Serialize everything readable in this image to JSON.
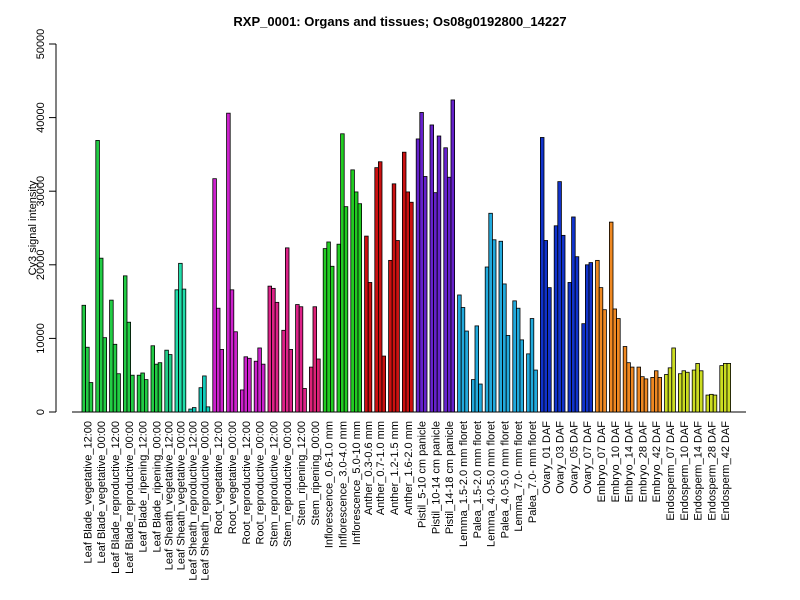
{
  "chart_data": {
    "type": "bar",
    "title": "RXP_0001: Organs and tissues; Os08g0192800_14227",
    "xlabel": "",
    "ylabel": "Cy3 signal intensity",
    "ylim": [
      0,
      50000
    ],
    "yticks": [
      0,
      10000,
      20000,
      30000,
      40000,
      50000
    ],
    "grid": false,
    "legend": "none",
    "groups": [
      {
        "color": "#22cc44",
        "values": [
          14500,
          8800,
          4000
        ]
      },
      {
        "color": "#22cc44",
        "values": [
          36900,
          20900,
          10100
        ]
      },
      {
        "color": "#22cc44",
        "values": [
          15200,
          9200,
          5200
        ]
      },
      {
        "color": "#22cc44",
        "values": [
          18500,
          12200,
          5000
        ]
      },
      {
        "color": "#22cc44",
        "values": [
          5000,
          5300,
          4400
        ]
      },
      {
        "color": "#22cc44",
        "values": [
          9000,
          6500,
          6700
        ]
      },
      {
        "color": "#22cc88",
        "values": [
          8400,
          7800
        ]
      },
      {
        "color": "#22ddaa",
        "values": [
          16600,
          20200,
          16700
        ]
      },
      {
        "color": "#11ccbb",
        "values": [
          400,
          600
        ]
      },
      {
        "color": "#11ccbb",
        "values": [
          3300,
          4900,
          700
        ]
      },
      {
        "color": "#cc22cc",
        "values": [
          31700,
          14100,
          8500
        ]
      },
      {
        "color": "#cc22cc",
        "values": [
          40600,
          16600,
          10900
        ]
      },
      {
        "color": "#cc22cc",
        "values": [
          3000,
          7500,
          7300
        ]
      },
      {
        "color": "#cc22cc",
        "values": [
          6900,
          8700,
          6500
        ]
      },
      {
        "color": "#dd2288",
        "values": [
          17100,
          16800,
          14900
        ]
      },
      {
        "color": "#dd2288",
        "values": [
          11100,
          22300,
          8500
        ]
      },
      {
        "color": "#dd2288",
        "values": [
          14600,
          14300,
          3200
        ]
      },
      {
        "color": "#dd2277",
        "values": [
          6100,
          14300,
          7200
        ]
      },
      {
        "color": "#22cc22",
        "values": [
          22200,
          23100,
          19800
        ]
      },
      {
        "color": "#22cc22",
        "values": [
          22800,
          37800,
          27900
        ]
      },
      {
        "color": "#22cc22",
        "values": [
          32900,
          29900,
          28300
        ]
      },
      {
        "color": "#cc1111",
        "values": [
          23900,
          17600
        ]
      },
      {
        "color": "#cc1111",
        "values": [
          33200,
          34000,
          7600
        ]
      },
      {
        "color": "#cc1111",
        "values": [
          20600,
          31000,
          23300
        ]
      },
      {
        "color": "#cc1111",
        "values": [
          35300,
          29900,
          28500
        ]
      },
      {
        "color": "#6622cc",
        "values": [
          37100,
          40700,
          32000
        ]
      },
      {
        "color": "#6622cc",
        "values": [
          39000,
          29800,
          37500
        ]
      },
      {
        "color": "#6622cc",
        "values": [
          35900,
          31900,
          42400
        ]
      },
      {
        "color": "#22aadd",
        "values": [
          15900,
          14200,
          11000
        ]
      },
      {
        "color": "#22aadd",
        "values": [
          4400,
          11700,
          3800
        ]
      },
      {
        "color": "#22aadd",
        "values": [
          19700,
          27000,
          23400
        ]
      },
      {
        "color": "#22aadd",
        "values": [
          23200,
          17400,
          10400
        ]
      },
      {
        "color": "#22aadd",
        "values": [
          15100,
          14100,
          9800
        ]
      },
      {
        "color": "#22aadd",
        "values": [
          7900,
          12700,
          5700
        ]
      },
      {
        "color": "#1133cc",
        "values": [
          37300,
          23300,
          16900
        ]
      },
      {
        "color": "#1133cc",
        "values": [
          25300,
          31300,
          24000
        ]
      },
      {
        "color": "#1133cc",
        "values": [
          17600,
          26500,
          21100
        ]
      },
      {
        "color": "#1133cc",
        "values": [
          12000,
          20000,
          20300
        ]
      },
      {
        "color": "#ee8822",
        "values": [
          20600,
          16900,
          13900
        ]
      },
      {
        "color": "#ee8822",
        "values": [
          25800,
          14000,
          12700
        ]
      },
      {
        "color": "#ee8822",
        "values": [
          8900,
          6700,
          6100
        ]
      },
      {
        "color": "#ee8822",
        "values": [
          6100,
          4800,
          4500
        ]
      },
      {
        "color": "#ee8822",
        "values": [
          4700,
          5600,
          4700
        ]
      },
      {
        "color": "#ccdd22",
        "values": [
          5100,
          6000,
          8700
        ]
      },
      {
        "color": "#ccdd22",
        "values": [
          5200,
          5600,
          5400
        ]
      },
      {
        "color": "#ccdd22",
        "values": [
          5700,
          6600,
          5600
        ]
      },
      {
        "color": "#ccdd22",
        "values": [
          2300,
          2400,
          2300
        ]
      },
      {
        "color": "#ccdd22",
        "values": [
          6300,
          6600,
          6600
        ]
      }
    ],
    "categories": [
      "Leaf Blade_vegetative_12:00",
      "Leaf Blade_vegetative_00:00",
      "Leaf Blade_reproductive_12:00",
      "Leaf Blade_reproductive_00:00",
      "Leaf Blade_ripening_12:00",
      "Leaf Blade_ripening_00:00",
      "Leaf Sheath_vegetative_12:00",
      "Leaf Sheath_vegetative_00:00",
      "Leaf Sheath_reproductive_12:00",
      "Leaf Sheath_reproductive_00:00",
      "Root_vegetative_12:00",
      "Root_vegetative_00:00",
      "Root_reproductive_12:00",
      "Root_reproductive_00:00",
      "Stem_reproductive_12:00",
      "Stem_reproductive_00:00",
      "Stem_ripening_12:00",
      "Stem_ripening_00:00",
      "Inflorescence_0.6-1.0 mm",
      "Inflorescence_3.0-4.0 mm",
      "Inflorescence_5.0-10 mm",
      "Anther_0.3-0.6 mm",
      "Anther_0.7-1.0 mm",
      "Anther_1.2-1.5 mm",
      "Anther_1.6-2.0 mm",
      "Pistil_5-10 cm panicle",
      "Pistil_10-14 cm panicle",
      "Pistil_14-18 cm panicle",
      "Lemma_1.5-2.0 mm floret",
      "Palea_1.5-2.0 mm floret",
      "Lemma_4.0-5.0 mm floret",
      "Palea_4.0-5.0 mm floret",
      "Lemma_7.0- mm floret",
      "Palea_7.0- mm floret",
      "Ovary_01 DAF",
      "Ovary_03 DAF",
      "Ovary_05 DAF",
      "Ovary_07 DAF",
      "Embryo_07 DAF",
      "Embryo_10 DAF",
      "Embryo_14 DAF",
      "Embryo_28 DAF",
      "Embryo_42 DAF",
      "Endosperm_07 DAF",
      "Endosperm_10 DAF",
      "Endosperm_14 DAF",
      "Endosperm_28 DAF",
      "Endosperm_42 DAF"
    ]
  }
}
